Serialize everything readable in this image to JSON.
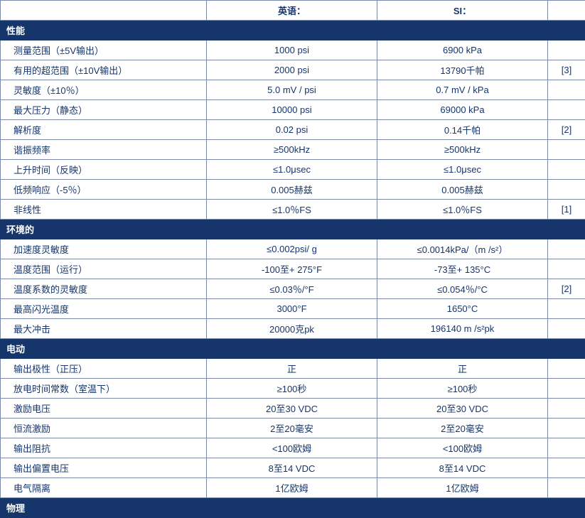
{
  "columns": {
    "label_blank": "",
    "english": "英语：",
    "si": "SI：",
    "note_blank": ""
  },
  "sections": [
    {
      "title": "性能",
      "rows": [
        {
          "label": "测量范围（±5V输出）",
          "en": "1000 psi",
          "si": "6900 kPa",
          "note": ""
        },
        {
          "label": "有用的超范围（±10V输出）",
          "en": "2000 psi",
          "si": "13790千帕",
          "note": "[3]"
        },
        {
          "label": "灵敏度（±10％）",
          "en": "5.0 mV / psi",
          "si": "0.7 mV / kPa",
          "note": ""
        },
        {
          "label": "最大压力（静态）",
          "en": "10000 psi",
          "si": "69000 kPa",
          "note": ""
        },
        {
          "label": "解析度",
          "en": "0.02 psi",
          "si": "0.14千帕",
          "note": "[2]"
        },
        {
          "label": "谐振频率",
          "en": "≥500kHz",
          "si": "≥500kHz",
          "note": ""
        },
        {
          "label": "上升时间（反映）",
          "en": "≤1.0μsec",
          "si": "≤1.0μsec",
          "note": ""
        },
        {
          "label": "低频响应（-5％）",
          "en": "0.005赫兹",
          "si": "0.005赫兹",
          "note": ""
        },
        {
          "label": "非线性",
          "en": "≤1.0％FS",
          "si": "≤1.0％FS",
          "note": "[1]"
        }
      ]
    },
    {
      "title": "环境的",
      "rows": [
        {
          "label": "加速度灵敏度",
          "en": "≤0.002psi/ g",
          "si": "≤0.0014kPa/（m /s²）",
          "note": ""
        },
        {
          "label": "温度范围（运行）",
          "en": "-100至+ 275°F",
          "si": "-73至+ 135°C",
          "note": ""
        },
        {
          "label": "温度系数的灵敏度",
          "en": "≤0.03％/°F",
          "si": "≤0.054％/°C",
          "note": "[2]"
        },
        {
          "label": "最高闪光温度",
          "en": "3000°F",
          "si": "1650°C",
          "note": ""
        },
        {
          "label": "最大冲击",
          "en": "20000克pk",
          "si": "196140 m /s²pk",
          "note": ""
        }
      ]
    },
    {
      "title": "电动",
      "rows": [
        {
          "label": "输出极性（正压）",
          "en": "正",
          "si": "正",
          "note": ""
        },
        {
          "label": "放电时间常数（室温下）",
          "en": "≥100秒",
          "si": "≥100秒",
          "note": ""
        },
        {
          "label": "激励电压",
          "en": "20至30 VDC",
          "si": "20至30 VDC",
          "note": ""
        },
        {
          "label": "恒流激励",
          "en": "2至20毫安",
          "si": "2至20毫安",
          "note": ""
        },
        {
          "label": "输出阻抗",
          "en": "<100欧姆",
          "si": "<100欧姆",
          "note": ""
        },
        {
          "label": "输出偏置电压",
          "en": "8至14 VDC",
          "si": "8至14 VDC",
          "note": ""
        },
        {
          "label": "电气隔离",
          "en": "1亿欧姆",
          "si": "1亿欧姆",
          "note": ""
        }
      ]
    },
    {
      "title": "物理",
      "rows": []
    }
  ]
}
